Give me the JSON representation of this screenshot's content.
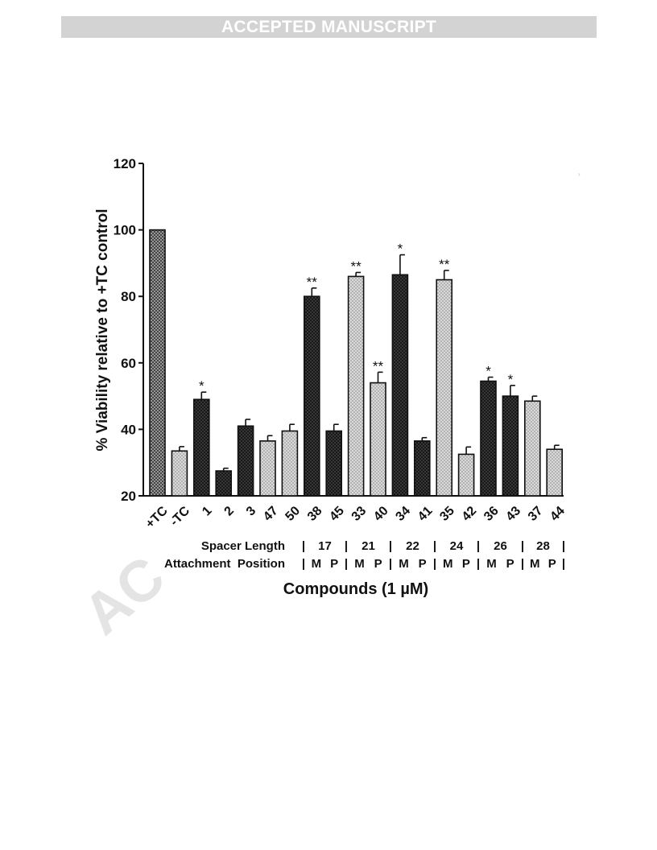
{
  "header": {
    "banner": "ACCEPTED MANUSCRIPT"
  },
  "watermark": {
    "text": "AC"
  },
  "colors": {
    "dark_hatch": "#3a3a3a",
    "light_hatch": "#d8d8d8",
    "mid_hatch": "#8a8a8a"
  },
  "chart_data": {
    "type": "bar",
    "title": "",
    "ylabel": "% Viability relative to +TC control",
    "xlabel": "Compounds (1 µM)",
    "ylim": [
      20,
      120
    ],
    "yticks": [
      "20",
      "40",
      "60",
      "80",
      "100",
      "120"
    ],
    "categories": [
      "+TC",
      "-TC",
      "1",
      "2",
      "3",
      "47",
      "50",
      "38",
      "45",
      "33",
      "40",
      "34",
      "41",
      "35",
      "42",
      "36",
      "43",
      "37",
      "44"
    ],
    "values": [
      100,
      33.5,
      49,
      27.5,
      41,
      36.5,
      39.5,
      80,
      39.5,
      86,
      54,
      86.5,
      36.5,
      85,
      32.5,
      54.5,
      50,
      48.5,
      34
    ],
    "errors": [
      0,
      1.3,
      2.2,
      0.8,
      2.0,
      1.6,
      2.0,
      2.5,
      2.0,
      1.2,
      3.2,
      6.0,
      1.0,
      2.8,
      2.2,
      1.2,
      3.2,
      1.5,
      1.2
    ],
    "fill_style": [
      "mid",
      "light",
      "dark",
      "dark",
      "dark",
      "light",
      "light",
      "dark",
      "dark",
      "light",
      "light",
      "dark",
      "dark",
      "light",
      "light",
      "dark",
      "dark",
      "light",
      "light"
    ],
    "significance": [
      "",
      "",
      "*",
      "",
      "",
      "",
      "",
      "**",
      "",
      "**",
      "**",
      "*",
      "",
      "**",
      "",
      "*",
      "*",
      "",
      ""
    ],
    "grid": false,
    "spacer_length": {
      "label": "Spacer Length",
      "values": [
        "17",
        "21",
        "22",
        "24",
        "26",
        "28"
      ],
      "separator": "|"
    },
    "attachment_position": {
      "label": "Attachment  Position",
      "values": [
        "M",
        "P",
        "M",
        "P",
        "M",
        "P",
        "M",
        "P",
        "M",
        "P",
        "M",
        "P"
      ],
      "separator": "|"
    }
  }
}
